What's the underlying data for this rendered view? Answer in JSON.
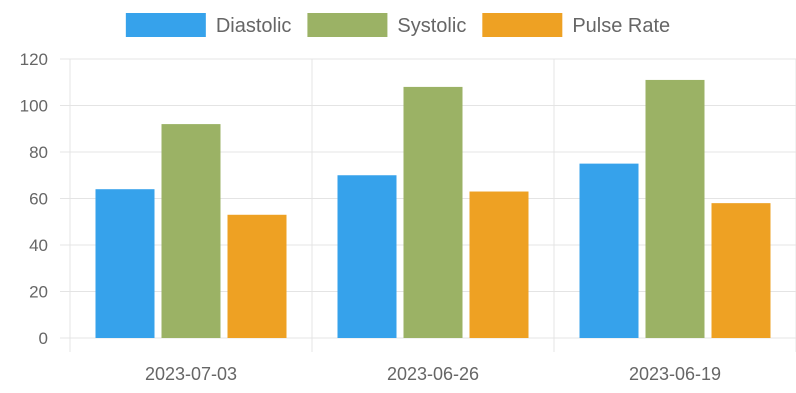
{
  "chart_data": {
    "type": "bar",
    "categories": [
      "2023-07-03",
      "2023-06-26",
      "2023-06-19"
    ],
    "series": [
      {
        "name": "Diastolic",
        "values": [
          64,
          70,
          75
        ],
        "color": "#36A2EB"
      },
      {
        "name": "Systolic",
        "values": [
          92,
          108,
          111
        ],
        "color": "#9BB265"
      },
      {
        "name": "Pulse Rate",
        "values": [
          53,
          63,
          58
        ],
        "color": "#EEA123"
      }
    ],
    "ylim": [
      0,
      120
    ],
    "yticks": [
      0,
      20,
      40,
      60,
      80,
      100,
      120
    ],
    "grid": true,
    "legend_position": "top"
  }
}
